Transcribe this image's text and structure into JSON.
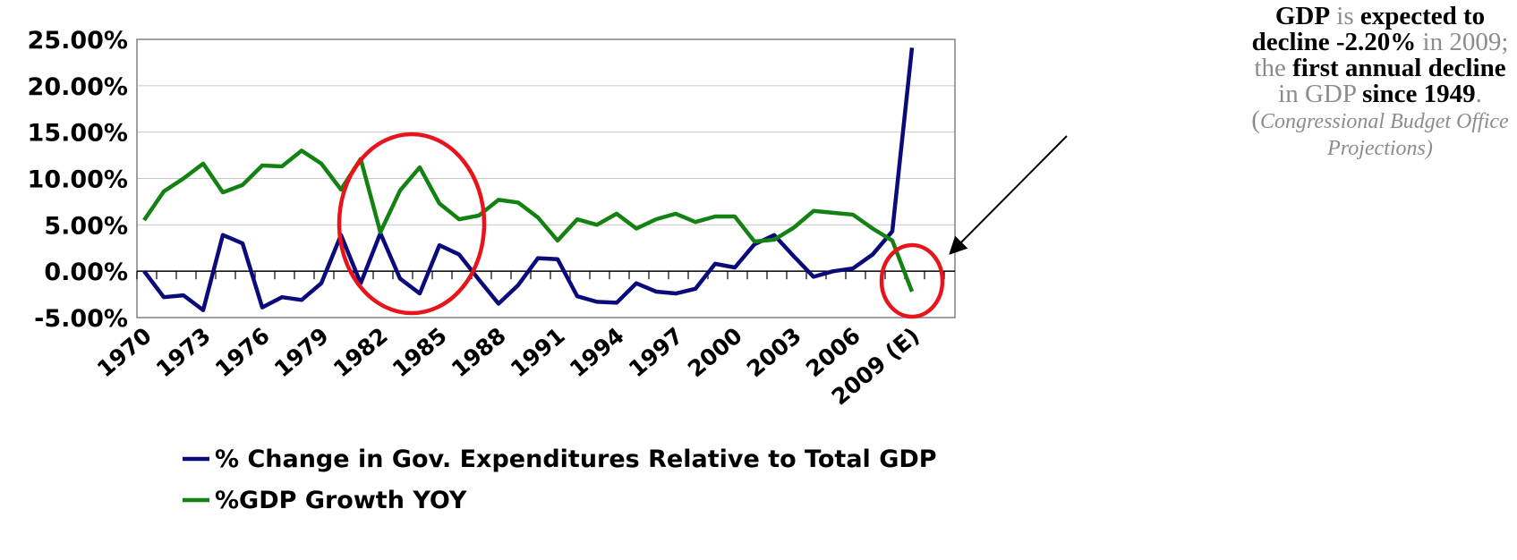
{
  "chart_data": {
    "type": "line",
    "title": "",
    "xlabel": "",
    "ylabel": "",
    "ylim": [
      -5,
      25
    ],
    "y_ticks": [
      "25.00%",
      "20.00%",
      "15.00%",
      "10.00%",
      "5.00%",
      "0.00%",
      "-5.00%"
    ],
    "y_tick_values": [
      25,
      20,
      15,
      10,
      5,
      0,
      -5
    ],
    "x": [
      "1970",
      "1971",
      "1972",
      "1973",
      "1974",
      "1975",
      "1976",
      "1977",
      "1978",
      "1979",
      "1980",
      "1981",
      "1982",
      "1983",
      "1984",
      "1985",
      "1986",
      "1987",
      "1988",
      "1989",
      "1990",
      "1991",
      "1992",
      "1993",
      "1994",
      "1995",
      "1996",
      "1997",
      "1998",
      "1999",
      "2000",
      "2001",
      "2002",
      "2003",
      "2004",
      "2005",
      "2006",
      "2007",
      "2008",
      "2009 (E)"
    ],
    "x_tick_labels": [
      "1970",
      "1973",
      "1976",
      "1979",
      "1982",
      "1985",
      "1988",
      "1991",
      "1994",
      "1997",
      "2000",
      "2003",
      "2006",
      "2009 (E)"
    ],
    "grid": "horizontal",
    "legend_position": "bottom",
    "series": [
      {
        "name": "% Change in Gov. Expenditures Relative to Total GDP",
        "color": "#0a0a7a",
        "values": [
          0.0,
          -2.8,
          -2.6,
          -4.2,
          3.9,
          3.0,
          -3.9,
          -2.8,
          -3.1,
          -1.3,
          3.9,
          -1.3,
          4.1,
          -0.8,
          -2.4,
          2.8,
          1.8,
          -0.9,
          -3.5,
          -1.5,
          1.4,
          1.3,
          -2.7,
          -3.3,
          -3.4,
          -1.3,
          -2.2,
          -2.4,
          -1.9,
          0.8,
          0.4,
          2.9,
          3.9,
          1.6,
          -0.6,
          0.0,
          0.3,
          1.8,
          4.3,
          24.1
        ]
      },
      {
        "name": "%GDP Growth YOY",
        "color": "#138213",
        "values": [
          5.5,
          8.6,
          10.0,
          11.6,
          8.5,
          9.3,
          11.4,
          11.3,
          13.0,
          11.6,
          8.8,
          12.1,
          4.2,
          8.7,
          11.2,
          7.3,
          5.6,
          6.0,
          7.7,
          7.4,
          5.8,
          3.3,
          5.6,
          5.0,
          6.2,
          4.6,
          5.6,
          6.2,
          5.3,
          5.9,
          5.9,
          3.2,
          3.4,
          4.7,
          6.5,
          6.3,
          6.1,
          4.6,
          3.3,
          -2.2
        ]
      }
    ],
    "annotation": {
      "parts": [
        {
          "text": "GDP",
          "bold": true
        },
        {
          "text": " is ",
          "bold": false
        },
        {
          "text": "expected to decline",
          "bold": true
        },
        {
          "text": " ",
          "bold": false
        },
        {
          "text": "-2.20%",
          "bold": true
        },
        {
          "text": " in 2009; the ",
          "bold": false
        },
        {
          "text": "first annual decline",
          "bold": true
        },
        {
          "text": " in GDP ",
          "bold": false
        },
        {
          "text": "since 1949",
          "bold": true
        },
        {
          "text": ". (",
          "bold": false
        },
        {
          "text": "Congressional Budget Office Projections)",
          "bold": false,
          "italic": true
        }
      ]
    },
    "highlight_color": "#e8141b",
    "arrow_color": "#000000"
  }
}
